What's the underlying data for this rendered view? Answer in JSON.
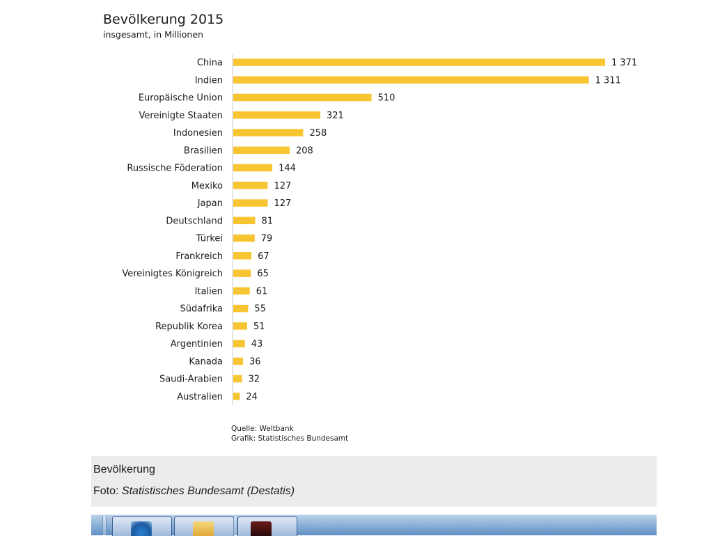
{
  "chart_data": {
    "type": "bar",
    "orientation": "horizontal",
    "title": "Bevölkerung 2015",
    "subtitle": "insgesamt, in Millionen",
    "categories": [
      "China",
      "Indien",
      "Europäische Union",
      "Vereinigte Staaten",
      "Indonesien",
      "Brasilien",
      "Russische Föderation",
      "Mexiko",
      "Japan",
      "Deutschland",
      "Türkei",
      "Frankreich",
      "Vereinigtes Königreich",
      "Italien",
      "Südafrika",
      "Republik Korea",
      "Argentinien",
      "Kanada",
      "Saudi-Arabien",
      "Australien"
    ],
    "values": [
      1371,
      1311,
      510,
      321,
      258,
      208,
      144,
      127,
      127,
      81,
      79,
      67,
      65,
      61,
      55,
      51,
      43,
      36,
      32,
      24
    ],
    "value_labels": [
      "1 371",
      "1 311",
      "510",
      "321",
      "258",
      "208",
      "144",
      "127",
      "127",
      "81",
      "79",
      "67",
      "65",
      "61",
      "55",
      "51",
      "43",
      "36",
      "32",
      "24"
    ],
    "xlim": [
      0,
      1371
    ],
    "bar_color": "#f7c531",
    "grid": false,
    "legend": "none"
  },
  "source": {
    "line1": "Quelle: Weltbank",
    "line2": "Grafik: Statistisches Bundesamt"
  },
  "caption": {
    "title": "Bevölkerung",
    "credit_prefix": "Foto:",
    "credit_source": "Statistisches Bundesamt (Destatis)"
  },
  "taskbar": {
    "icons": [
      "browser-icon",
      "explorer-folder-icon",
      "app-icon"
    ]
  }
}
